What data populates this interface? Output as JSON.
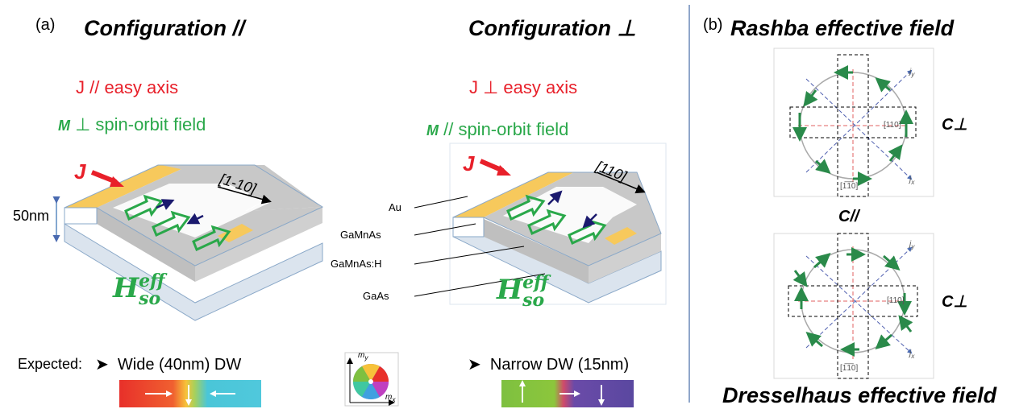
{
  "panel_a": {
    "letter": "(a)",
    "config_parallel": {
      "title": "Configuration //",
      "current_label": "J  // easy axis",
      "m_prefix": "M",
      "m_label": " ⊥ spin-orbit field",
      "j_arrow_label": "J",
      "direction": "[1-10]",
      "thickness": "50nm",
      "field_base": "H",
      "field_sup": "eff",
      "field_sub": "so"
    },
    "config_perp": {
      "title": "Configuration ⊥",
      "current_label": "J ⊥ easy axis",
      "m_prefix": "M",
      "m_label": " // spin-orbit field",
      "j_arrow_label": "J",
      "direction": "[110]",
      "field_base": "H",
      "field_sup": "eff",
      "field_sub": "so"
    },
    "layers": [
      "Au",
      "GaMnAs",
      "GaMnAs:H",
      "GaAs"
    ],
    "expected_label": "Expected:",
    "wide_dw": "Wide (40nm) DW",
    "narrow_dw": "Narrow DW (15nm)",
    "wheel_y": "m",
    "wheel_y_sub": "y",
    "wheel_x": "m",
    "wheel_x_sub": "x",
    "colors": {
      "yellow": "#f7c95c",
      "gray": "#c8c8c8",
      "base": "#d9e4f0",
      "green_arrow": "#2aa84a",
      "navy": "#1b1a6e"
    }
  },
  "panel_b": {
    "letter": "(b)",
    "rashba_title": "Rashba effective field",
    "dresselhaus_title": "Dresselhaus effective field",
    "c_perp": "C⊥",
    "c_par": "C//",
    "dir_110": "[110]",
    "dir_1m10": "[1̅1̅0]",
    "jy": "j",
    "jy_sub": "y",
    "jx": "j",
    "jx_sub": "x"
  }
}
